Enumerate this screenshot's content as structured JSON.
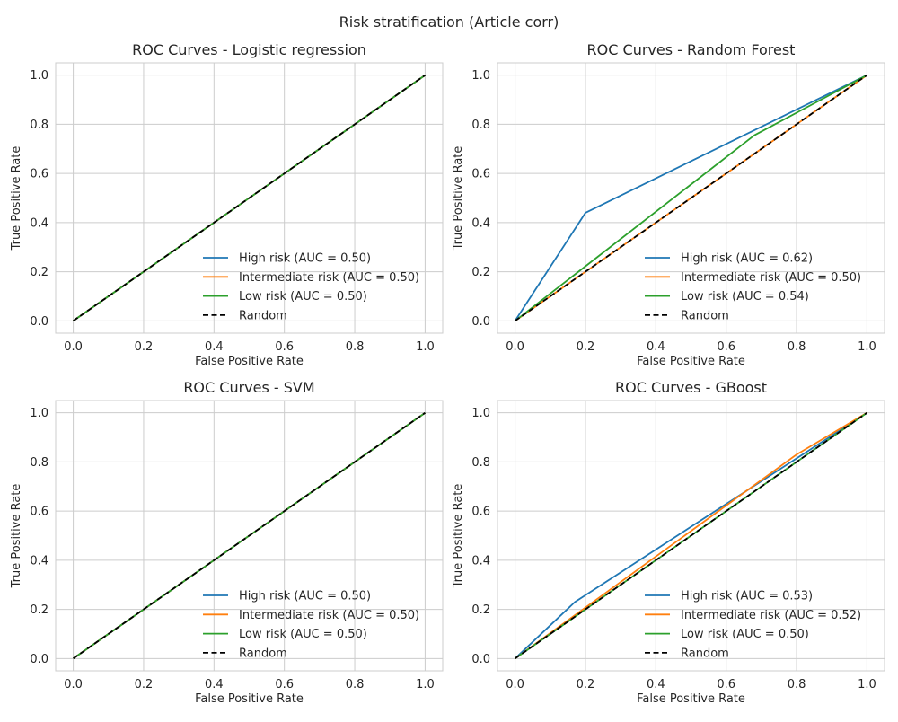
{
  "figure": {
    "suptitle": "Risk stratification (Article corr)"
  },
  "colors": {
    "high": "#1f77b4",
    "intermediate": "#ff7f0e",
    "low": "#2ca02c",
    "random": "#000000",
    "grid": "#cccccc",
    "spine": "#cccccc"
  },
  "chart_data": [
    {
      "type": "line",
      "title": "ROC Curves - Logistic regression",
      "xlabel": "False Positive Rate",
      "ylabel": "True Positive Rate",
      "xlim": [
        -0.05,
        1.05
      ],
      "ylim": [
        -0.05,
        1.05
      ],
      "xticks": [
        "0.0",
        "0.2",
        "0.4",
        "0.6",
        "0.8",
        "1.0"
      ],
      "yticks": [
        "0.0",
        "0.2",
        "0.4",
        "0.6",
        "0.8",
        "1.0"
      ],
      "grid": true,
      "legend_position": "lower-right",
      "series": [
        {
          "name": "High risk (AUC = 0.50)",
          "color_key": "high",
          "dash": false,
          "x": [
            0,
            1
          ],
          "y": [
            0,
            1
          ]
        },
        {
          "name": "Intermediate risk (AUC = 0.50)",
          "color_key": "intermediate",
          "dash": false,
          "x": [
            0,
            1
          ],
          "y": [
            0,
            1
          ]
        },
        {
          "name": "Low risk (AUC = 0.50)",
          "color_key": "low",
          "dash": false,
          "x": [
            0,
            1
          ],
          "y": [
            0,
            1
          ]
        },
        {
          "name": "Random",
          "color_key": "random",
          "dash": true,
          "x": [
            0,
            1
          ],
          "y": [
            0,
            1
          ]
        }
      ]
    },
    {
      "type": "line",
      "title": "ROC Curves - Random Forest",
      "xlabel": "False Positive Rate",
      "ylabel": "True Positive Rate",
      "xlim": [
        -0.05,
        1.05
      ],
      "ylim": [
        -0.05,
        1.05
      ],
      "xticks": [
        "0.0",
        "0.2",
        "0.4",
        "0.6",
        "0.8",
        "1.0"
      ],
      "yticks": [
        "0.0",
        "0.2",
        "0.4",
        "0.6",
        "0.8",
        "1.0"
      ],
      "grid": true,
      "legend_position": "lower-right",
      "series": [
        {
          "name": "High risk (AUC = 0.62)",
          "color_key": "high",
          "dash": false,
          "x": [
            0,
            0.2,
            1
          ],
          "y": [
            0,
            0.44,
            1
          ]
        },
        {
          "name": "Intermediate risk (AUC = 0.50)",
          "color_key": "intermediate",
          "dash": false,
          "x": [
            0,
            1
          ],
          "y": [
            0,
            1
          ]
        },
        {
          "name": "Low risk (AUC = 0.54)",
          "color_key": "low",
          "dash": false,
          "x": [
            0,
            0.68,
            1
          ],
          "y": [
            0,
            0.755,
            1
          ]
        },
        {
          "name": "Random",
          "color_key": "random",
          "dash": true,
          "x": [
            0,
            1
          ],
          "y": [
            0,
            1
          ]
        }
      ]
    },
    {
      "type": "line",
      "title": "ROC Curves - SVM",
      "xlabel": "False Positive Rate",
      "ylabel": "True Positive Rate",
      "xlim": [
        -0.05,
        1.05
      ],
      "ylim": [
        -0.05,
        1.05
      ],
      "xticks": [
        "0.0",
        "0.2",
        "0.4",
        "0.6",
        "0.8",
        "1.0"
      ],
      "yticks": [
        "0.0",
        "0.2",
        "0.4",
        "0.6",
        "0.8",
        "1.0"
      ],
      "grid": true,
      "legend_position": "lower-right",
      "series": [
        {
          "name": "High risk (AUC = 0.50)",
          "color_key": "high",
          "dash": false,
          "x": [
            0,
            1
          ],
          "y": [
            0,
            1
          ]
        },
        {
          "name": "Intermediate risk (AUC = 0.50)",
          "color_key": "intermediate",
          "dash": false,
          "x": [
            0,
            1
          ],
          "y": [
            0,
            1
          ]
        },
        {
          "name": "Low risk (AUC = 0.50)",
          "color_key": "low",
          "dash": false,
          "x": [
            0,
            1
          ],
          "y": [
            0,
            1
          ]
        },
        {
          "name": "Random",
          "color_key": "random",
          "dash": true,
          "x": [
            0,
            1
          ],
          "y": [
            0,
            1
          ]
        }
      ]
    },
    {
      "type": "line",
      "title": "ROC Curves - GBoost",
      "xlabel": "False Positive Rate",
      "ylabel": "True Positive Rate",
      "xlim": [
        -0.05,
        1.05
      ],
      "ylim": [
        -0.05,
        1.05
      ],
      "xticks": [
        "0.0",
        "0.2",
        "0.4",
        "0.6",
        "0.8",
        "1.0"
      ],
      "yticks": [
        "0.0",
        "0.2",
        "0.4",
        "0.6",
        "0.8",
        "1.0"
      ],
      "grid": true,
      "legend_position": "lower-right",
      "series": [
        {
          "name": "High risk (AUC = 0.53)",
          "color_key": "high",
          "dash": false,
          "x": [
            0,
            0.17,
            1
          ],
          "y": [
            0,
            0.23,
            1
          ]
        },
        {
          "name": "Intermediate risk (AUC = 0.52)",
          "color_key": "intermediate",
          "dash": false,
          "x": [
            0,
            0.8,
            1
          ],
          "y": [
            0,
            0.83,
            1
          ]
        },
        {
          "name": "Low risk (AUC = 0.50)",
          "color_key": "low",
          "dash": false,
          "x": [
            0,
            1
          ],
          "y": [
            0,
            1
          ]
        },
        {
          "name": "Random",
          "color_key": "random",
          "dash": true,
          "x": [
            0,
            1
          ],
          "y": [
            0,
            1
          ]
        }
      ]
    }
  ]
}
